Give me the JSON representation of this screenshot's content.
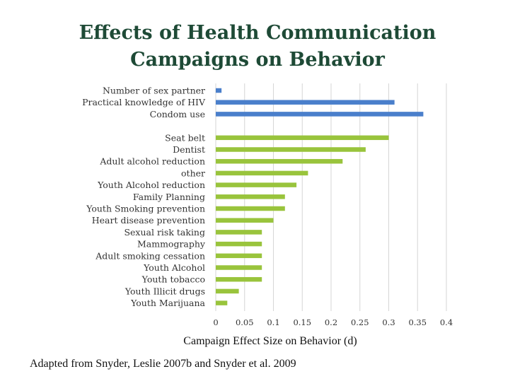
{
  "slide": {
    "title_line1": "Effects of Health Communication",
    "title_line2": "Campaigns on Behavior",
    "source_note": "Adapted from Snyder, Leslie 2007b and Snyder et al. 2009"
  },
  "colors": {
    "title": "#1e4a36",
    "group_hiv": "#4a7fcb",
    "group_other": "#99c43c"
  },
  "chart_data": {
    "type": "bar",
    "orientation": "horizontal",
    "xlabel": "Campaign Effect Size on Behavior (d)",
    "xlim": [
      0,
      0.4
    ],
    "xticks": [
      0,
      0.05,
      0.1,
      0.15,
      0.2,
      0.25,
      0.3,
      0.35,
      0.4
    ],
    "grid": true,
    "legend": "none",
    "categories": [
      "Number of sex partner",
      "Practical knowledge of HIV",
      "Condom use",
      "Seat belt",
      "Dentist",
      "Adult alcohol reduction",
      "other",
      "Youth Alcohol reduction",
      "Family Planning",
      "Youth Smoking prevention",
      "Heart disease prevention",
      "Sexual risk taking",
      "Mammography",
      "Adult smoking cessation",
      "Youth Alcohol",
      "Youth tobacco",
      "Youth Illicit drugs",
      "Youth Marijuana"
    ],
    "values": [
      0.01,
      0.31,
      0.36,
      0.3,
      0.26,
      0.22,
      0.16,
      0.14,
      0.12,
      0.12,
      0.1,
      0.08,
      0.08,
      0.08,
      0.08,
      0.08,
      0.04,
      0.02
    ],
    "groups": [
      "hiv",
      "hiv",
      "hiv",
      "other",
      "other",
      "other",
      "other",
      "other",
      "other",
      "other",
      "other",
      "other",
      "other",
      "other",
      "other",
      "other",
      "other",
      "other"
    ]
  }
}
